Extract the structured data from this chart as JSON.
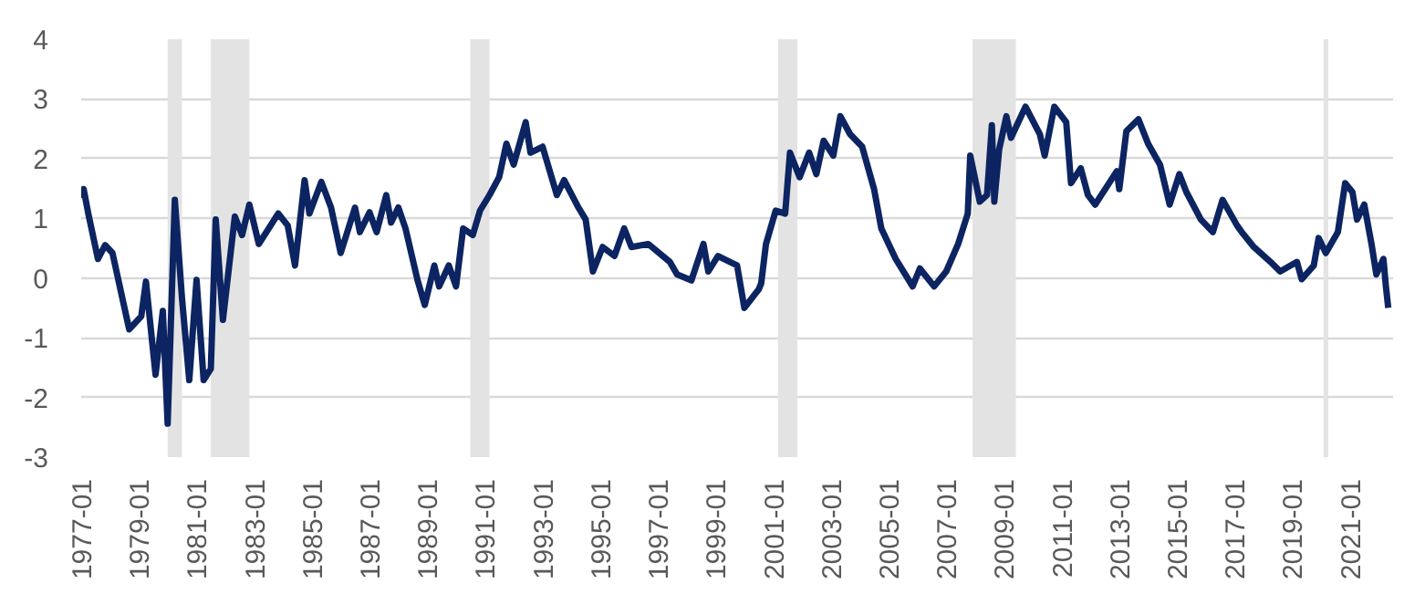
{
  "chart_data": {
    "type": "line",
    "x": [
      "1977-01",
      "1977-02",
      "1977-04",
      "1977-08",
      "1977-11",
      "1978-02",
      "1978-09",
      "1979-02",
      "1979-04",
      "1979-08",
      "1979-11",
      "1980-01",
      "1980-04",
      "1980-07",
      "1980-10",
      "1981-01",
      "1981-04",
      "1981-07",
      "1981-09",
      "1981-12",
      "1982-05",
      "1982-08",
      "1982-11",
      "1983-03",
      "1983-11",
      "1984-03",
      "1984-06",
      "1984-10",
      "1984-12",
      "1985-05",
      "1985-09",
      "1986-01",
      "1986-07",
      "1986-09",
      "1987-01",
      "1987-04",
      "1987-08",
      "1987-10",
      "1988-01",
      "1988-04",
      "1988-09",
      "1988-12",
      "1989-04",
      "1989-06",
      "1989-10",
      "1990-01",
      "1990-04",
      "1990-08",
      "1990-11",
      "1991-03",
      "1991-07",
      "1991-10",
      "1992-01",
      "1992-06",
      "1992-08",
      "1993-01",
      "1993-07",
      "1993-10",
      "1994-04",
      "1994-07",
      "1994-10",
      "1995-02",
      "1995-07",
      "1995-11",
      "1996-02",
      "1996-09",
      "1997-06",
      "1997-09",
      "1998-03",
      "1998-08",
      "1998-10",
      "1999-02",
      "1999-10",
      "2000-01",
      "2000-07",
      "2000-08",
      "2000-10",
      "2001-02",
      "2001-06",
      "2001-08",
      "2001-12",
      "2002-04",
      "2002-07",
      "2002-10",
      "2003-02",
      "2003-05",
      "2003-09",
      "2004-02",
      "2004-07",
      "2004-10",
      "2005-04",
      "2005-08",
      "2005-11",
      "2006-02",
      "2006-08",
      "2007-01",
      "2007-06",
      "2007-10",
      "2007-11",
      "2008-03",
      "2008-06",
      "2008-08",
      "2008-09",
      "2008-11",
      "2009-02",
      "2009-04",
      "2009-10",
      "2010-04",
      "2010-06",
      "2010-10",
      "2011-03",
      "2011-05",
      "2011-09",
      "2011-12",
      "2012-03",
      "2012-08",
      "2012-12",
      "2013-01",
      "2013-04",
      "2013-09",
      "2014-01",
      "2014-06",
      "2014-10",
      "2015-02",
      "2015-05",
      "2015-11",
      "2016-04",
      "2016-08",
      "2017-02",
      "2017-04",
      "2017-09",
      "2018-04",
      "2018-08",
      "2019-03",
      "2019-05",
      "2019-10",
      "2019-12",
      "2020-03",
      "2020-08",
      "2020-11",
      "2021-02",
      "2021-04",
      "2021-07",
      "2021-10",
      "2021-12",
      "2022-03",
      "2022-04",
      "2022-05"
    ],
    "series": [
      {
        "color": "#0c2461",
        "values": [
          1.34,
          1.49,
          1.08,
          0.32,
          0.55,
          0.42,
          -0.86,
          -0.64,
          -0.06,
          -1.62,
          -0.55,
          -2.44,
          1.31,
          -0.34,
          -1.71,
          -0.03,
          -1.71,
          -1.52,
          0.98,
          -0.7,
          1.03,
          0.72,
          1.23,
          0.57,
          1.08,
          0.88,
          0.21,
          1.64,
          1.08,
          1.61,
          1.18,
          0.42,
          1.18,
          0.77,
          1.1,
          0.77,
          1.39,
          0.93,
          1.18,
          0.83,
          -0.04,
          -0.45,
          0.21,
          -0.14,
          0.21,
          -0.14,
          0.83,
          0.72,
          1.13,
          1.39,
          1.69,
          2.25,
          1.9,
          2.61,
          2.1,
          2.2,
          1.39,
          1.64,
          1.18,
          0.98,
          0.11,
          0.52,
          0.37,
          0.83,
          0.52,
          0.57,
          0.27,
          0.06,
          -0.04,
          0.57,
          0.11,
          0.37,
          0.21,
          -0.5,
          -0.19,
          -0.09,
          0.57,
          1.13,
          1.08,
          2.1,
          1.69,
          2.1,
          1.74,
          2.3,
          2.05,
          2.71,
          2.41,
          2.2,
          1.49,
          0.83,
          0.32,
          0.06,
          -0.14,
          0.16,
          -0.14,
          0.11,
          0.57,
          1.08,
          2.05,
          1.28,
          1.39,
          2.56,
          1.28,
          2.15,
          2.71,
          2.35,
          2.87,
          2.41,
          2.05,
          2.87,
          2.61,
          1.59,
          1.84,
          1.39,
          1.23,
          1.54,
          1.79,
          1.49,
          2.46,
          2.66,
          2.25,
          1.9,
          1.23,
          1.74,
          1.44,
          0.98,
          0.77,
          1.31,
          0.88,
          0.77,
          0.52,
          0.27,
          0.11,
          0.27,
          -0.02,
          0.21,
          0.67,
          0.42,
          0.77,
          1.59,
          1.44,
          0.98,
          1.23,
          0.57,
          0.06,
          0.32,
          -0.14,
          -0.5
        ]
      }
    ],
    "xlim": [
      "1977-01",
      "2022-07"
    ],
    "xticks": [
      "1977-01",
      "1979-01",
      "1981-01",
      "1983-01",
      "1985-01",
      "1987-01",
      "1989-01",
      "1991-01",
      "1993-01",
      "1995-01",
      "1997-01",
      "1999-01",
      "2001-01",
      "2003-01",
      "2005-01",
      "2007-01",
      "2009-01",
      "2011-01",
      "2013-01",
      "2015-01",
      "2017-01",
      "2019-01",
      "2021-01"
    ],
    "ylim": [
      -3,
      4
    ],
    "yticks": [
      -3,
      -2,
      -1,
      0,
      1,
      2,
      3,
      4
    ],
    "grid": "y",
    "marker": "none",
    "line_style": "solid",
    "bands": [
      {
        "axis": "x",
        "from": "1980-01",
        "to": "1980-07",
        "color": "#e3e3e3"
      },
      {
        "axis": "x",
        "from": "1981-07",
        "to": "1982-11",
        "color": "#e3e3e3"
      },
      {
        "axis": "x",
        "from": "1990-07",
        "to": "1991-03",
        "color": "#e3e3e3"
      },
      {
        "axis": "x",
        "from": "2001-03",
        "to": "2001-11",
        "color": "#e3e3e3"
      },
      {
        "axis": "x",
        "from": "2007-12",
        "to": "2009-06",
        "color": "#e3e3e3"
      },
      {
        "axis": "x",
        "from": "2020-02",
        "to": "2020-04",
        "color": "#e3e3e3"
      }
    ]
  }
}
